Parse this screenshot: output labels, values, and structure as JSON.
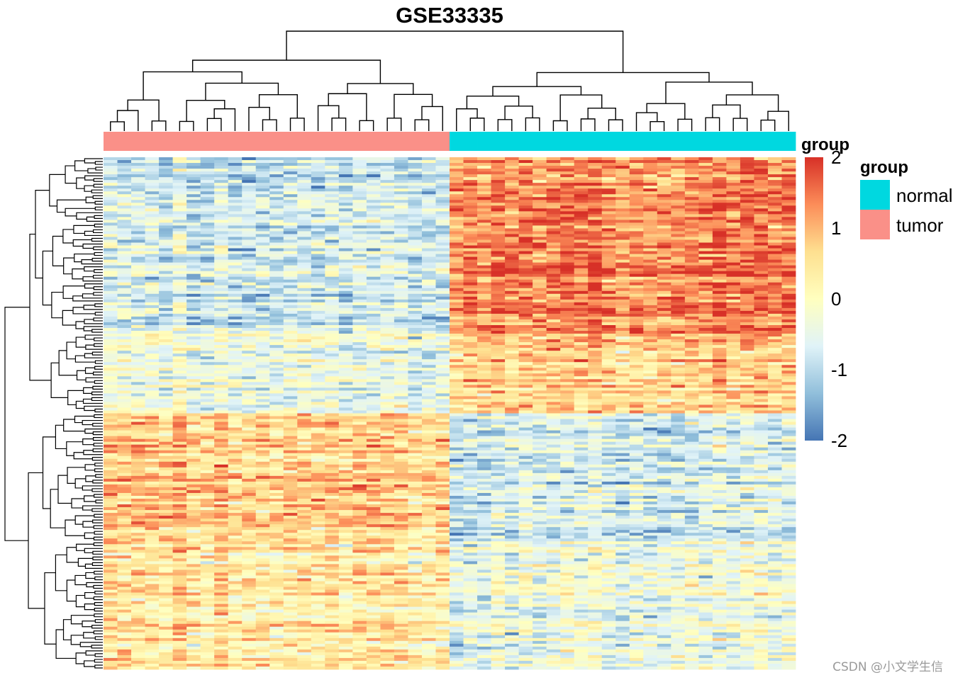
{
  "chart_data": {
    "type": "heatmap",
    "title": "GSE33335",
    "annotation": {
      "name": "group",
      "columns_tumor": 25,
      "columns_normal": 25,
      "legend": [
        {
          "label": "normal",
          "color": "#00D8E0"
        },
        {
          "label": "tumor",
          "color": "#FA9088"
        }
      ]
    },
    "color_scale": {
      "title": "group",
      "min": -2,
      "max": 2,
      "ticks": [
        {
          "label": "2",
          "value": 2
        },
        {
          "label": "1",
          "value": 1
        },
        {
          "label": "0",
          "value": 0
        },
        {
          "label": "-1",
          "value": -1
        },
        {
          "label": "-2",
          "value": -2
        }
      ],
      "colors": [
        "#4575B4",
        "#91BFDB",
        "#E0F3F8",
        "#FFFFBF",
        "#FEE090",
        "#FC8D59",
        "#D73027"
      ]
    },
    "n_rows": 180,
    "n_cols": 50,
    "row_blocks": [
      {
        "rows": 62,
        "tumor_mean": -0.7,
        "normal_mean": 1.4
      },
      {
        "rows": 28,
        "tumor_mean": -0.4,
        "normal_mean": 0.7
      },
      {
        "rows": 45,
        "tumor_mean": 0.8,
        "normal_mean": -0.7
      },
      {
        "rows": 45,
        "tumor_mean": 0.5,
        "normal_mean": -0.3
      }
    ]
  },
  "watermark": "CSDN @小文学生信"
}
